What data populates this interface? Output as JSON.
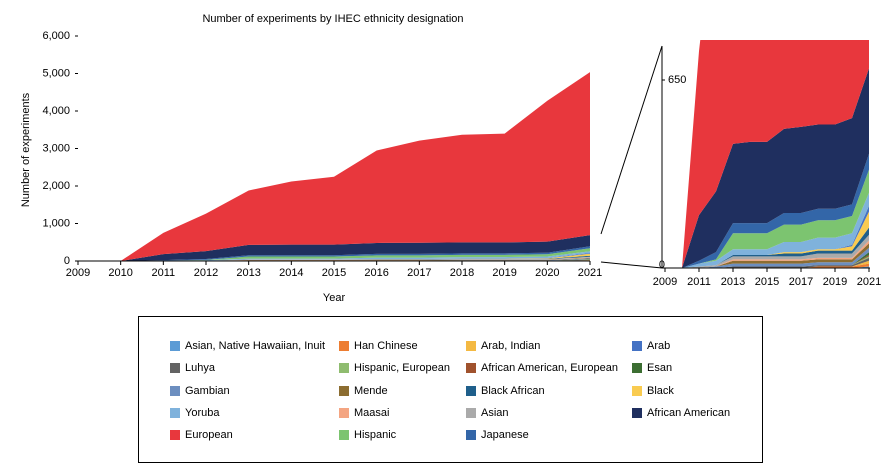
{
  "chart_data": {
    "type": "stacked_area",
    "title": "Number of experiments by IHEC ethnicity designation",
    "xlabel": "Year",
    "ylabel": "Number of experiments",
    "x": [
      2009,
      2010,
      2011,
      2012,
      2013,
      2014,
      2015,
      2016,
      2017,
      2018,
      2019,
      2020,
      2021
    ],
    "xlim": [
      2009,
      2021
    ],
    "xticks": [
      2009,
      2010,
      2011,
      2012,
      2013,
      2014,
      2015,
      2016,
      2017,
      2018,
      2019,
      2020,
      2021
    ],
    "ylim": [
      0,
      6000
    ],
    "yticks": [
      0,
      {
        "value": 1000,
        "label": "1,000"
      },
      {
        "value": 2000,
        "label": "2,000"
      },
      {
        "value": 3000,
        "label": "3,000"
      },
      {
        "value": 4000,
        "label": "4,000"
      },
      {
        "value": 5000,
        "label": "5,000"
      },
      {
        "value": 6000,
        "label": "6,000"
      }
    ],
    "inset": {
      "ylim": [
        0,
        650
      ],
      "yticks": [
        0,
        650
      ],
      "xticks": [
        2009,
        2011,
        2013,
        2015,
        2017,
        2019,
        2021
      ]
    },
    "series": [
      {
        "name": "Asian, Native Hawaiian, Inuit",
        "color": "#5b9bd5",
        "values": [
          0,
          0,
          0,
          0,
          0,
          0,
          0,
          0,
          0,
          0,
          0,
          0,
          5
        ]
      },
      {
        "name": "Han Chinese",
        "color": "#ed7d31",
        "values": [
          0,
          0,
          0,
          0,
          0,
          0,
          0,
          0,
          0,
          5,
          5,
          5,
          10
        ]
      },
      {
        "name": "Arab, Indian",
        "color": "#f4b942",
        "values": [
          0,
          0,
          0,
          0,
          0,
          0,
          0,
          0,
          0,
          0,
          0,
          0,
          10
        ]
      },
      {
        "name": "Luhya",
        "color": "#636363",
        "values": [
          0,
          0,
          0,
          0,
          5,
          5,
          5,
          5,
          5,
          5,
          5,
          5,
          10
        ]
      },
      {
        "name": "Hispanic, European",
        "color": "#8fbc6f",
        "values": [
          0,
          0,
          0,
          0,
          0,
          0,
          0,
          0,
          0,
          0,
          0,
          0,
          5
        ]
      },
      {
        "name": "African American, European",
        "color": "#a0522d",
        "values": [
          0,
          0,
          0,
          0,
          0,
          0,
          0,
          0,
          0,
          0,
          0,
          0,
          5
        ]
      },
      {
        "name": "Esan",
        "color": "#3c6e32",
        "values": [
          0,
          0,
          0,
          0,
          0,
          0,
          0,
          0,
          0,
          0,
          0,
          0,
          10
        ]
      },
      {
        "name": "Gambian",
        "color": "#6c8ebf",
        "values": [
          0,
          0,
          0,
          5,
          10,
          10,
          10,
          10,
          10,
          10,
          10,
          10,
          15
        ]
      },
      {
        "name": "Mende",
        "color": "#8c6d31",
        "values": [
          0,
          0,
          0,
          0,
          10,
          10,
          10,
          10,
          10,
          10,
          10,
          10,
          15
        ]
      },
      {
        "name": "Maasai",
        "color": "#f4a582",
        "values": [
          0,
          0,
          0,
          0,
          5,
          5,
          5,
          5,
          5,
          5,
          5,
          5,
          10
        ]
      },
      {
        "name": "Asian",
        "color": "#aaaaaa",
        "values": [
          0,
          0,
          5,
          5,
          10,
          10,
          10,
          10,
          10,
          15,
          15,
          15,
          20
        ]
      },
      {
        "name": "Black African",
        "color": "#1f5f8b",
        "values": [
          0,
          0,
          0,
          0,
          5,
          5,
          5,
          10,
          10,
          10,
          10,
          10,
          25
        ]
      },
      {
        "name": "Black",
        "color": "#f9cb50",
        "values": [
          0,
          0,
          0,
          0,
          0,
          0,
          0,
          5,
          5,
          5,
          5,
          15,
          55
        ]
      },
      {
        "name": "Arab",
        "color": "#4472c4",
        "values": [
          0,
          0,
          0,
          0,
          0,
          0,
          0,
          0,
          0,
          0,
          0,
          5,
          20
        ]
      },
      {
        "name": "Yoruba",
        "color": "#7fb2dc",
        "values": [
          0,
          0,
          10,
          15,
          20,
          20,
          20,
          35,
          35,
          40,
          40,
          40,
          45
        ]
      },
      {
        "name": "Hispanic",
        "color": "#7cc470",
        "values": [
          0,
          0,
          0,
          5,
          55,
          55,
          55,
          60,
          60,
          60,
          60,
          60,
          80
        ]
      },
      {
        "name": "Japanese",
        "color": "#3366a8",
        "values": [
          0,
          0,
          10,
          25,
          35,
          35,
          35,
          40,
          40,
          40,
          40,
          40,
          55
        ]
      },
      {
        "name": "African American",
        "color": "#1f2f5f",
        "values": [
          0,
          0,
          158,
          210,
          274,
          281,
          281,
          291,
          298,
          291,
          291,
          298,
          295
        ]
      },
      {
        "name": "European",
        "color": "#e8373d",
        "values": [
          0,
          0,
          567,
          1000,
          1452,
          1685,
          1811,
          2466,
          2722,
          2872,
          2902,
          3754,
          4346
        ]
      }
    ]
  }
}
